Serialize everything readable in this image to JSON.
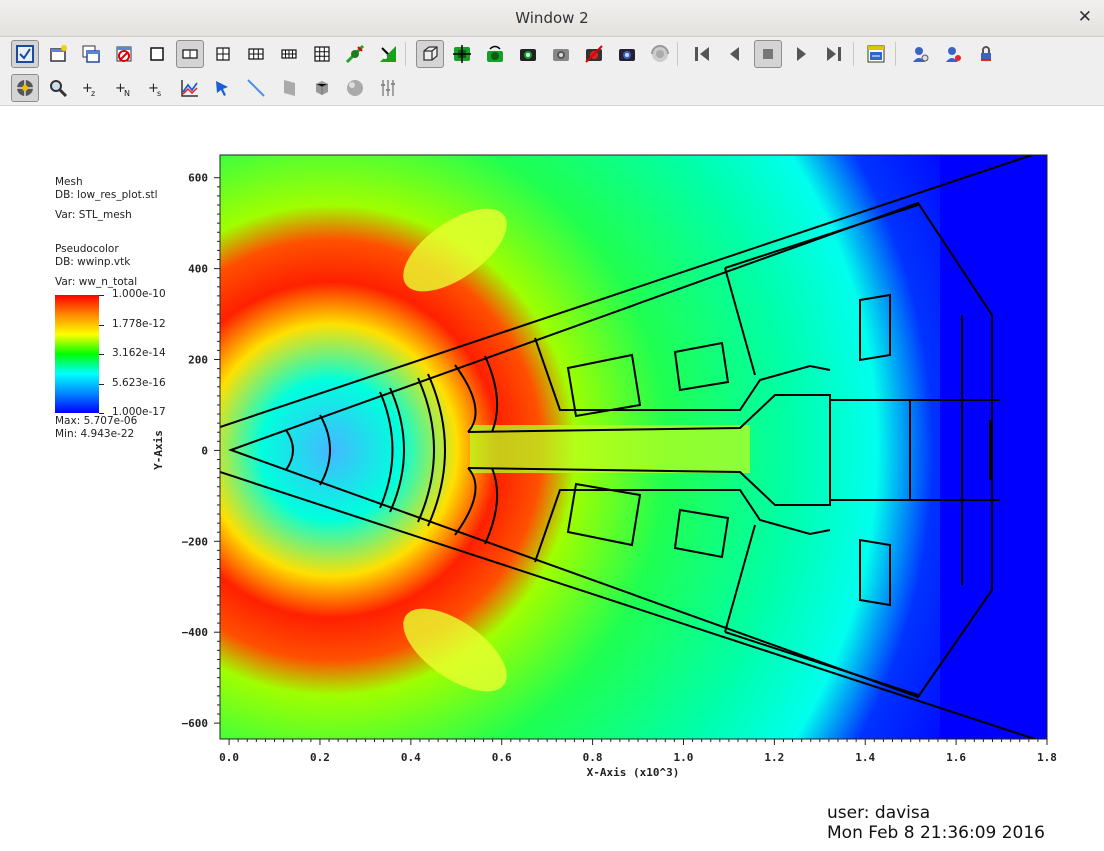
{
  "window": {
    "title": "Window 2",
    "close_glyph": "✕"
  },
  "toolbar1": [
    {
      "icon": "active-window-icon",
      "pressed": true
    },
    {
      "icon": "new-window-icon"
    },
    {
      "icon": "clone-window-icon"
    },
    {
      "icon": "delete-window-icon"
    },
    {
      "icon": "layout-1x1-icon"
    },
    {
      "icon": "layout-1x2-icon",
      "pressed": true
    },
    {
      "icon": "layout-2x2-icon"
    },
    {
      "icon": "layout-2x3-icon"
    },
    {
      "icon": "layout-2x4-icon"
    },
    {
      "icon": "layout-3x3-icon"
    },
    {
      "icon": "lock-tools-icon"
    },
    {
      "icon": "lock-view-icon"
    },
    {
      "icon": "perspective-icon",
      "pressed": true
    },
    {
      "icon": "recenter-view-icon"
    },
    {
      "icon": "undo-view-icon"
    },
    {
      "icon": "save-view-icon"
    },
    {
      "icon": "camera-icon"
    },
    {
      "icon": "clear-camera-icon"
    },
    {
      "icon": "camera-settings-icon"
    },
    {
      "icon": "spin-icon"
    },
    {
      "icon": "first-frame-icon"
    },
    {
      "icon": "reverse-step-icon"
    },
    {
      "icon": "stop-icon",
      "pressed": true
    },
    {
      "icon": "play-icon"
    },
    {
      "icon": "last-frame-icon"
    },
    {
      "icon": "copy-attributes-icon"
    },
    {
      "icon": "lock-time-icon"
    },
    {
      "icon": "unlock-time-icon"
    },
    {
      "icon": "lock-all-icon"
    }
  ],
  "toolbar2": [
    {
      "icon": "navigate-mode-icon",
      "pressed": true
    },
    {
      "icon": "zoom-mode-icon"
    },
    {
      "icon": "zone-pick-z-icon",
      "label": "+z"
    },
    {
      "icon": "node-pick-n-icon",
      "label": "+N"
    },
    {
      "icon": "spreadsheet-pick-s-icon",
      "label": "+s"
    },
    {
      "icon": "lineout-icon"
    },
    {
      "icon": "pick-tool-icon"
    },
    {
      "icon": "line-tool-icon"
    },
    {
      "icon": "plane-tool-icon"
    },
    {
      "icon": "box-tool-icon"
    },
    {
      "icon": "sphere-tool-icon"
    },
    {
      "icon": "axis-restriction-icon"
    }
  ],
  "legend": {
    "mesh_title": "Mesh",
    "mesh_db": "DB: low_res_plot.stl",
    "mesh_var": "Var: STL_mesh",
    "pc_title": "Pseudocolor",
    "pc_db": "DB: wwinp.vtk",
    "pc_var": "Var: ww_n_total",
    "labels": [
      "1.000e-10",
      "1.778e-12",
      "3.162e-14",
      "5.623e-16",
      "1.000e-17"
    ],
    "max": "Max:  5.707e-06",
    "min": "Min:  4.943e-22"
  },
  "plot": {
    "xlabel": "X-Axis (x10^3)",
    "ylabel": "Y-Axis",
    "xticks": [
      "0.0",
      "0.2",
      "0.4",
      "0.6",
      "0.8",
      "1.0",
      "1.2",
      "1.4",
      "1.6",
      "1.8"
    ],
    "xtick_values": [
      0,
      0.2,
      0.4,
      0.6,
      0.8,
      1.0,
      1.2,
      1.4,
      1.6,
      1.8
    ],
    "yticks": [
      "600",
      "400",
      "200",
      "0",
      "−200",
      "−400",
      "−600"
    ],
    "ytick_values": [
      600,
      400,
      200,
      0,
      -200,
      -400,
      -600
    ],
    "xlim": [
      -0.02,
      1.8
    ],
    "ylim": [
      -635,
      650
    ]
  },
  "user": {
    "line1": "user: davisa",
    "line2": "Mon Feb  8 21:36:09 2016"
  },
  "colors": {
    "cbar": [
      "#ff0000",
      "#ff8800",
      "#ffff00",
      "#00ff00",
      "#00ffff",
      "#0088ff",
      "#0000ff"
    ]
  }
}
